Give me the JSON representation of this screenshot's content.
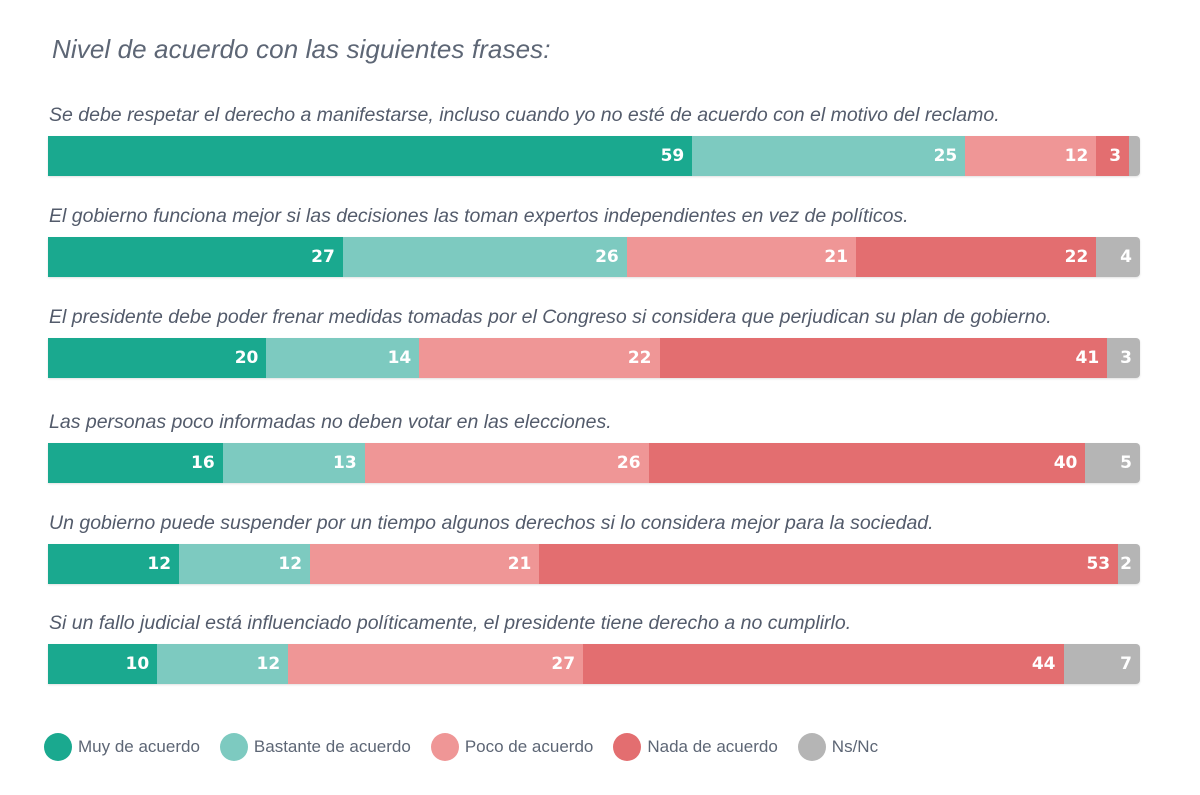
{
  "title": "Nivel de acuerdo con las siguientes frases:",
  "legend": [
    {
      "label": "Muy de acuerdo",
      "color": "#1aa98f"
    },
    {
      "label": "Bastante de acuerdo",
      "color": "#7dcac0"
    },
    {
      "label": "Poco de acuerdo",
      "color": "#ef9696"
    },
    {
      "label": "Nada de acuerdo",
      "color": "#e36e70"
    },
    {
      "label": "Ns/Nc",
      "color": "#b5b5b5"
    }
  ],
  "rows": [
    {
      "question": "Se debe respetar el derecho a manifestarse, incluso cuando yo no esté de acuerdo con el motivo del reclamo.",
      "values": [
        59,
        25,
        12,
        3,
        1
      ],
      "labels": [
        "59",
        "25",
        "12",
        "3",
        ""
      ]
    },
    {
      "question": "El gobierno funciona mejor si las decisiones las toman expertos independientes en vez de políticos.",
      "values": [
        27,
        26,
        21,
        22,
        4
      ],
      "labels": [
        "27",
        "26",
        "21",
        "22",
        "4"
      ]
    },
    {
      "question": "El presidente debe poder frenar medidas tomadas por el Congreso si considera que perjudican su plan de gobierno.",
      "values": [
        20,
        14,
        22,
        41,
        3
      ],
      "labels": [
        "20",
        "14",
        "22",
        "41",
        "3"
      ]
    },
    {
      "question": "Las personas poco informadas no deben votar en las elecciones.",
      "values": [
        16,
        13,
        26,
        40,
        5
      ],
      "labels": [
        "16",
        "13",
        "26",
        "40",
        "5"
      ]
    },
    {
      "question": "Un gobierno puede suspender por un tiempo algunos derechos si lo considera mejor para la sociedad.",
      "values": [
        12,
        12,
        21,
        53,
        2
      ],
      "labels": [
        "12",
        "12",
        "21",
        "53",
        "2"
      ]
    },
    {
      "question": "Si un fallo judicial está influenciado políticamente, el presidente tiene derecho a no cumplirlo.",
      "values": [
        10,
        12,
        27,
        44,
        7
      ],
      "labels": [
        "10",
        "12",
        "27",
        "44",
        "7"
      ]
    }
  ],
  "chart_data": {
    "type": "bar",
    "orientation": "horizontal",
    "stacked": true,
    "title": "Nivel de acuerdo con las siguientes frases:",
    "xlabel": "",
    "ylabel": "",
    "unit": "%",
    "legend_position": "bottom",
    "grid": false,
    "categories": [
      "Se debe respetar el derecho a manifestarse, incluso cuando yo no esté de acuerdo con el motivo del reclamo.",
      "El gobierno funciona mejor si las decisiones las toman expertos independientes en vez de políticos.",
      "El presidente debe poder frenar medidas tomadas por el Congreso si considera que perjudican su plan de gobierno.",
      "Las personas poco informadas no deben votar en las elecciones.",
      "Un gobierno puede suspender por un tiempo algunos derechos si lo considera mejor para la sociedad.",
      "Si un fallo judicial está influenciado políticamente, el presidente tiene derecho a no cumplirlo."
    ],
    "series": [
      {
        "name": "Muy de acuerdo",
        "color": "#1aa98f",
        "values": [
          59,
          27,
          20,
          16,
          12,
          10
        ]
      },
      {
        "name": "Bastante de acuerdo",
        "color": "#7dcac0",
        "values": [
          25,
          26,
          14,
          13,
          12,
          12
        ]
      },
      {
        "name": "Poco de acuerdo",
        "color": "#ef9696",
        "values": [
          12,
          21,
          22,
          26,
          21,
          27
        ]
      },
      {
        "name": "Nada de acuerdo",
        "color": "#e36e70",
        "values": [
          3,
          22,
          41,
          40,
          53,
          44
        ]
      },
      {
        "name": "Ns/Nc",
        "color": "#b5b5b5",
        "values": [
          1,
          4,
          3,
          5,
          2,
          7
        ]
      }
    ],
    "xlim": [
      0,
      100
    ]
  }
}
